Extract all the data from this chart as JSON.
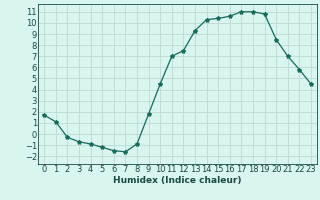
{
  "x": [
    0,
    1,
    2,
    3,
    4,
    5,
    6,
    7,
    8,
    9,
    10,
    11,
    12,
    13,
    14,
    15,
    16,
    17,
    18,
    19,
    20,
    21,
    22,
    23
  ],
  "y": [
    1.7,
    1.1,
    -0.3,
    -0.7,
    -0.9,
    -1.2,
    -1.5,
    -1.6,
    -0.9,
    1.8,
    4.5,
    7.0,
    7.5,
    9.3,
    10.3,
    10.4,
    10.6,
    11.0,
    11.0,
    10.8,
    8.5,
    7.0,
    5.8,
    4.5
  ],
  "line_color": "#1a6b5a",
  "marker": "*",
  "marker_size": 3,
  "bg_color": "#d8f5f0",
  "grid_color": "#c0ddd8",
  "xlabel": "Humidex (Indice chaleur)",
  "ylabel": "",
  "xlim": [
    -0.5,
    23.5
  ],
  "ylim": [
    -2.7,
    11.7
  ],
  "yticks": [
    -2,
    -1,
    0,
    1,
    2,
    3,
    4,
    5,
    6,
    7,
    8,
    9,
    10,
    11
  ],
  "xticks": [
    0,
    1,
    2,
    3,
    4,
    5,
    6,
    7,
    8,
    9,
    10,
    11,
    12,
    13,
    14,
    15,
    16,
    17,
    18,
    19,
    20,
    21,
    22,
    23
  ],
  "xlabel_fontsize": 6.5,
  "tick_fontsize": 6,
  "label_color": "#1a4a40",
  "linewidth": 0.9
}
